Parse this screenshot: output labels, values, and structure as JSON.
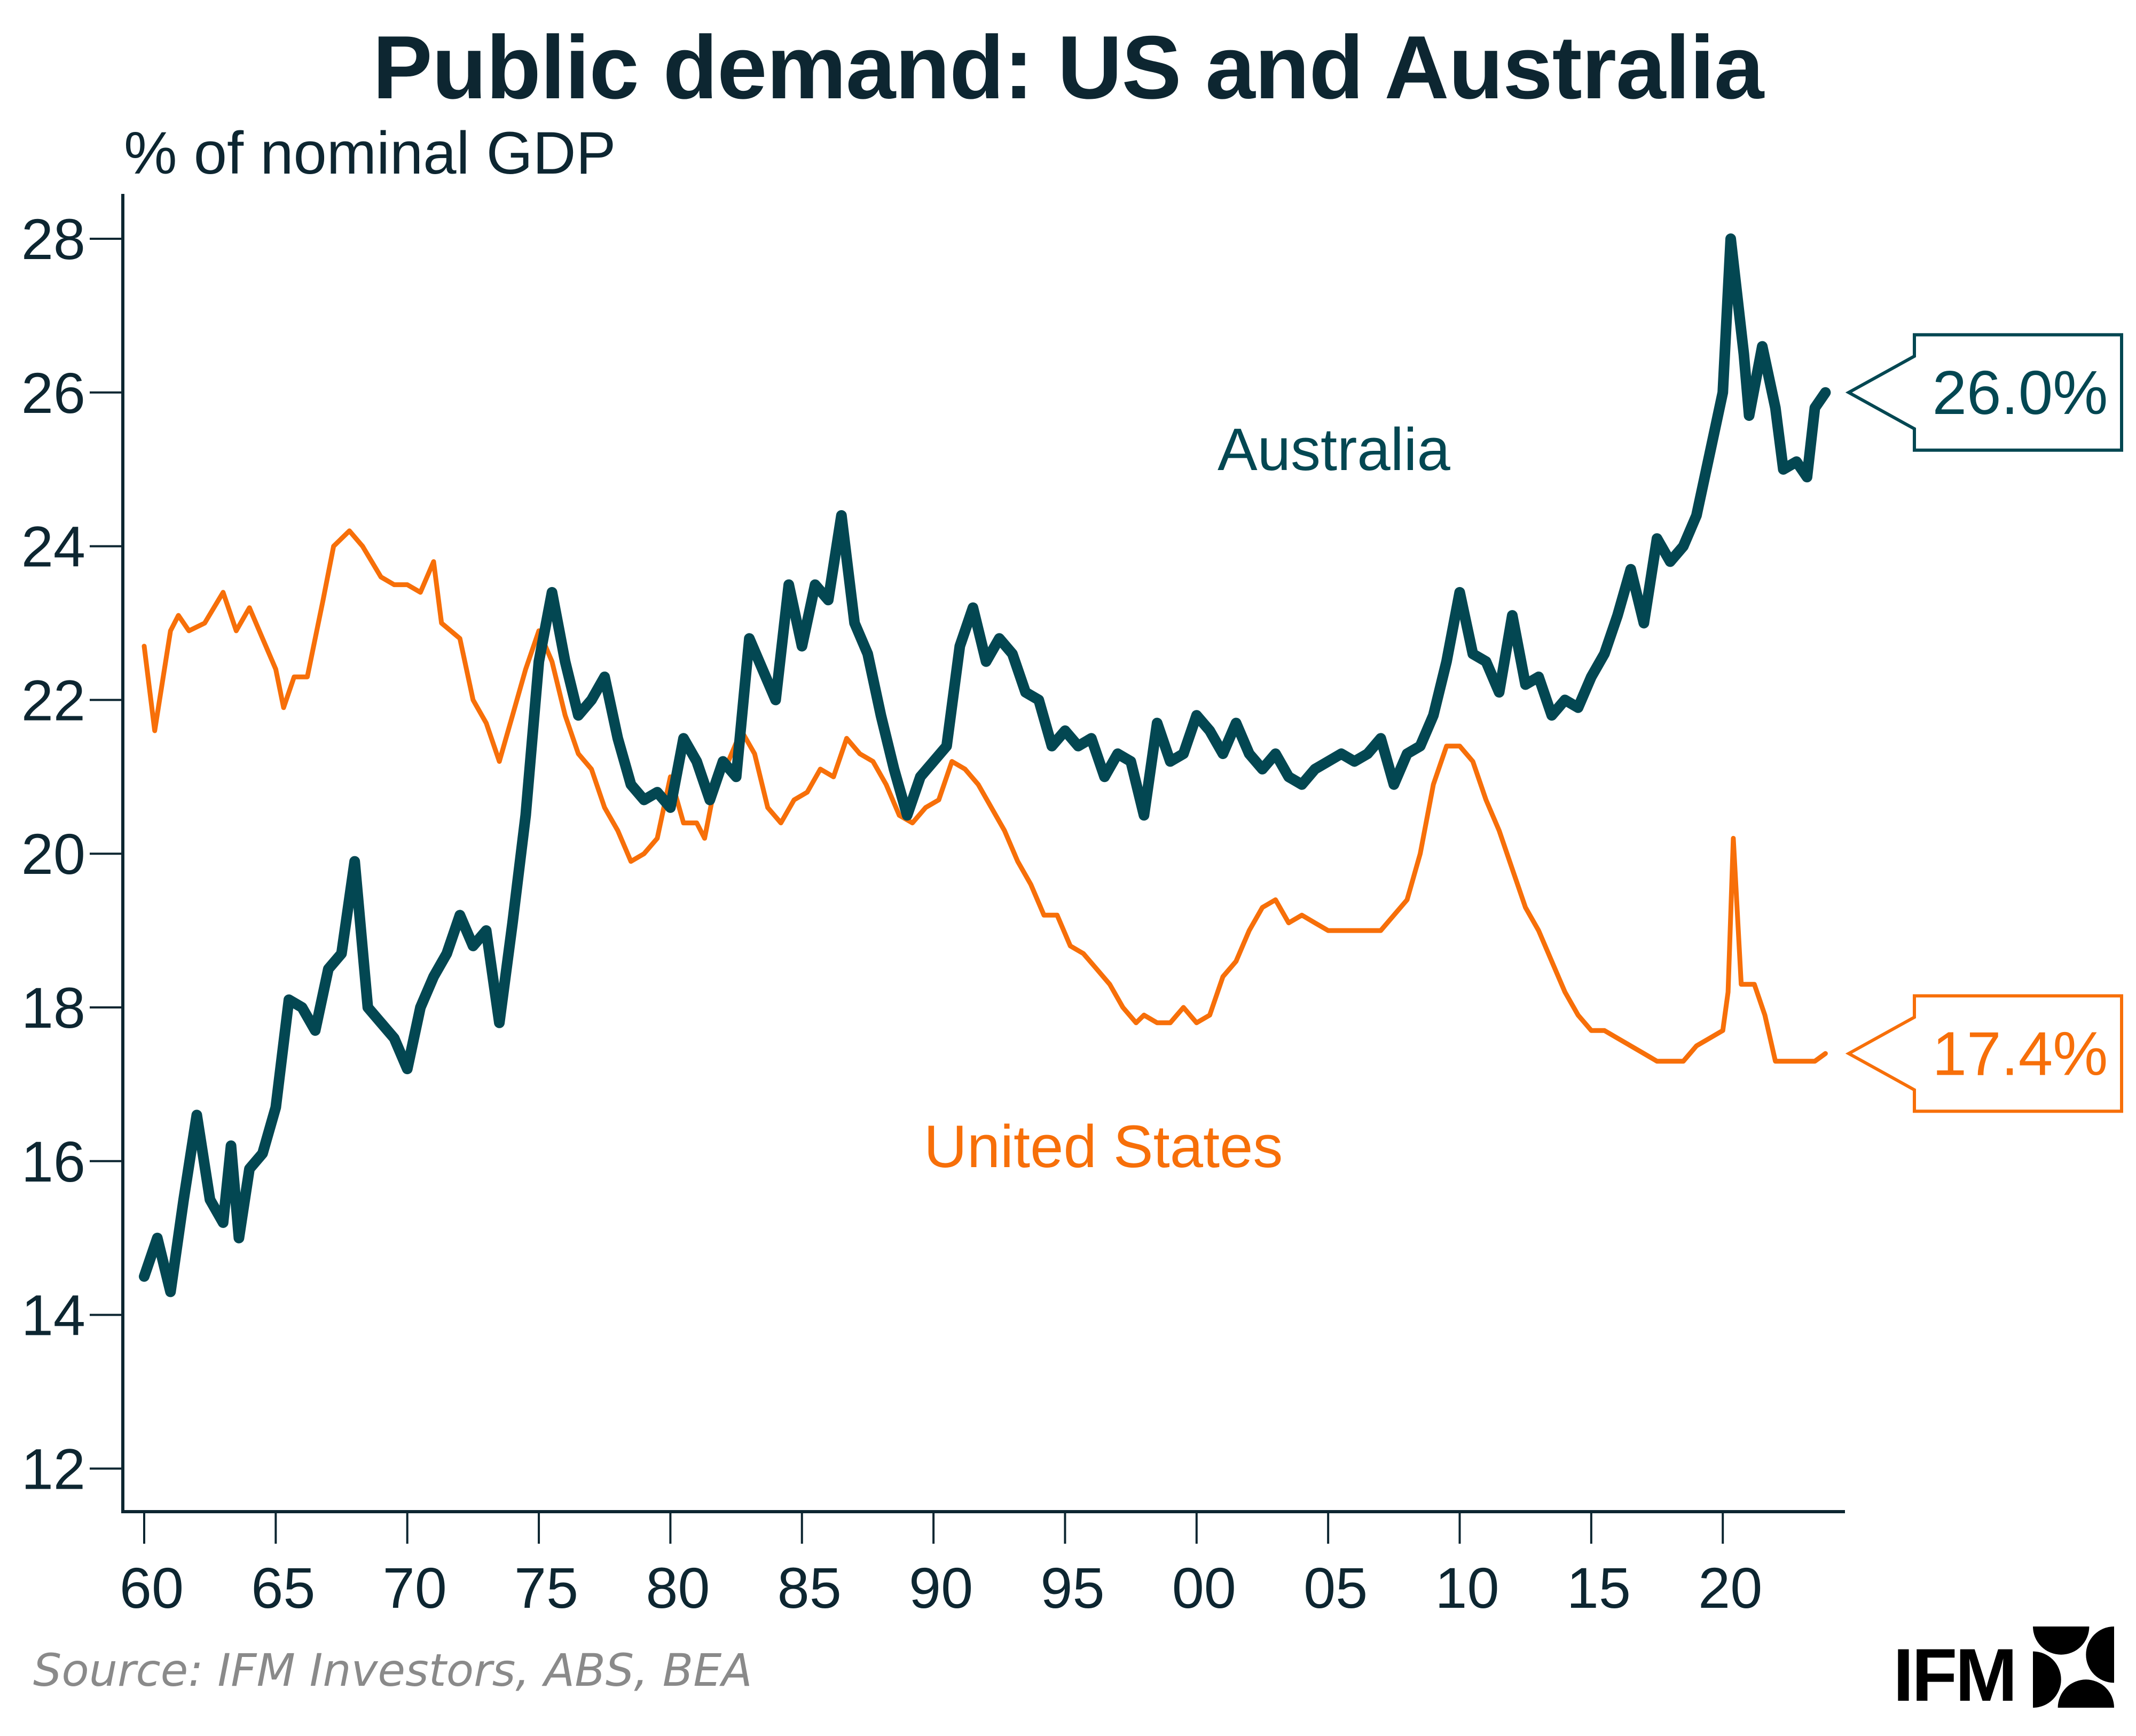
{
  "title": "Public demand: US and Australia",
  "source": "Source: IFM Investors, ABS, BEA",
  "logo": {
    "text": "IFM",
    "icon": "ifm-logo-mark-icon"
  },
  "colors": {
    "australia": "#034752",
    "us": "#f76f09",
    "axis": "#0d2631"
  },
  "chart_data": {
    "type": "line",
    "title": "Public demand: US and Australia",
    "xlabel": "",
    "ylabel": "% of nominal GDP",
    "xlim": [
      1959.4,
      2025.3
    ],
    "ylim": [
      11.5,
      28.5
    ],
    "yticks": [
      12,
      14,
      16,
      18,
      20,
      22,
      24,
      26,
      28
    ],
    "ytick_labels": [
      "12",
      "14",
      "16",
      "18",
      "20",
      "22",
      "24",
      "26",
      "28"
    ],
    "xticks": [
      1960,
      1965,
      1970,
      1975,
      1980,
      1985,
      1990,
      1995,
      2000,
      2005,
      2010,
      2015,
      2020
    ],
    "xtick_labels": [
      "60",
      "65",
      "70",
      "75",
      "80",
      "85",
      "90",
      "95",
      "00",
      "05",
      "10",
      "15",
      "20"
    ],
    "grid": false,
    "legend": "inline labels",
    "series": [
      {
        "name": "Australia",
        "label_text": "Australia",
        "end_label": "26.0%",
        "x": [
          1960,
          1960.5,
          1961,
          1961.5,
          1962,
          1962.5,
          1963,
          1963.3,
          1963.6,
          1964,
          1964.5,
          1965,
          1965.5,
          1966,
          1966.5,
          1967,
          1967.5,
          1968,
          1968.5,
          1969,
          1969.5,
          1970,
          1970.5,
          1971,
          1971.5,
          1972,
          1972.5,
          1973,
          1973.5,
          1974,
          1974.5,
          1975,
          1975.5,
          1976,
          1976.5,
          1977,
          1977.5,
          1978,
          1978.5,
          1979,
          1979.5,
          1980,
          1980.5,
          1981,
          1981.5,
          1982,
          1982.5,
          1983,
          1983.5,
          1984,
          1984.5,
          1985,
          1985.5,
          1986,
          1986.5,
          1987,
          1987.5,
          1988,
          1988.5,
          1989,
          1989.5,
          1990,
          1990.5,
          1991,
          1991.5,
          1992,
          1992.5,
          1993,
          1993.5,
          1994,
          1994.5,
          1995,
          1995.5,
          1996,
          1996.5,
          1997,
          1997.5,
          1998,
          1998.5,
          1999,
          1999.5,
          2000,
          2000.5,
          2001,
          2001.5,
          2002,
          2002.5,
          2003,
          2003.5,
          2004,
          2004.5,
          2005,
          2005.5,
          2006,
          2006.5,
          2007,
          2007.5,
          2008,
          2008.5,
          2009,
          2009.5,
          2010,
          2010.5,
          2011,
          2011.5,
          2012,
          2012.5,
          2013,
          2013.5,
          2014,
          2014.5,
          2015,
          2015.5,
          2016,
          2016.5,
          2017,
          2017.5,
          2018,
          2018.5,
          2019,
          2019.5,
          2020,
          2020.3,
          2020.8,
          2021,
          2021.5,
          2022,
          2022.3,
          2022.8,
          2023.2,
          2023.5,
          2023.9
        ],
        "values": [
          14.5,
          15.0,
          14.3,
          15.5,
          16.6,
          15.5,
          15.2,
          16.2,
          15.0,
          15.9,
          16.1,
          16.7,
          18.1,
          18.0,
          17.7,
          18.5,
          18.7,
          19.9,
          18.0,
          17.8,
          17.6,
          17.2,
          18.0,
          18.4,
          18.7,
          19.2,
          18.8,
          19.0,
          17.8,
          19.1,
          20.5,
          22.5,
          23.4,
          22.5,
          21.8,
          22.0,
          22.3,
          21.5,
          20.9,
          20.7,
          20.8,
          20.6,
          21.5,
          21.2,
          20.7,
          21.2,
          21.0,
          22.8,
          22.4,
          22.0,
          23.5,
          22.7,
          23.5,
          23.3,
          24.4,
          23.0,
          22.6,
          21.8,
          21.1,
          20.5,
          21.0,
          21.2,
          21.4,
          22.7,
          23.2,
          22.5,
          22.8,
          22.6,
          22.1,
          22.0,
          21.4,
          21.6,
          21.4,
          21.5,
          21.0,
          21.3,
          21.2,
          20.5,
          21.7,
          21.2,
          21.3,
          21.8,
          21.6,
          21.3,
          21.7,
          21.3,
          21.1,
          21.3,
          21.0,
          20.9,
          21.1,
          21.2,
          21.3,
          21.2,
          21.3,
          21.5,
          20.9,
          21.3,
          21.4,
          21.8,
          22.5,
          23.4,
          22.6,
          22.5,
          22.1,
          23.1,
          22.2,
          22.3,
          21.8,
          22.0,
          21.9,
          22.3,
          22.6,
          23.1,
          23.7,
          23.0,
          24.1,
          23.8,
          24.0,
          24.4,
          25.2,
          26.0,
          28.0,
          26.5,
          25.7,
          26.6,
          25.8,
          25.0,
          25.1,
          24.9,
          25.8,
          26.0
        ]
      },
      {
        "name": "United States",
        "label_text": "United States",
        "end_label": "17.4%",
        "x": [
          1960,
          1960.4,
          1961,
          1961.3,
          1961.7,
          1962.3,
          1963,
          1963.5,
          1964,
          1964.5,
          1965,
          1965.3,
          1965.7,
          1966.2,
          1966.8,
          1967.2,
          1967.8,
          1968.3,
          1969,
          1969.5,
          1970,
          1970.5,
          1971,
          1971.3,
          1972,
          1972.5,
          1973,
          1973.5,
          1974,
          1974.5,
          1975,
          1975.5,
          1976,
          1976.5,
          1977,
          1977.5,
          1978,
          1978.5,
          1979,
          1979.5,
          1980,
          1980.5,
          1981,
          1981.3,
          1981.7,
          1982.2,
          1982.7,
          1983.2,
          1983.7,
          1984.2,
          1984.7,
          1985.2,
          1985.7,
          1986.2,
          1986.7,
          1987.2,
          1987.7,
          1988.2,
          1988.7,
          1989.2,
          1989.7,
          1990.2,
          1990.7,
          1991.2,
          1991.7,
          1992.2,
          1992.7,
          1993.2,
          1993.7,
          1994.2,
          1994.7,
          1995.2,
          1995.7,
          1996.2,
          1996.7,
          1997.2,
          1997.7,
          1998,
          1998.5,
          1999,
          1999.5,
          2000,
          2000.5,
          2001,
          2001.5,
          2002,
          2002.5,
          2003,
          2003.5,
          2004,
          2004.5,
          2005,
          2005.5,
          2006,
          2006.5,
          2007,
          2007.5,
          2008,
          2008.5,
          2009,
          2009.5,
          2010,
          2010.5,
          2011,
          2011.5,
          2012,
          2012.5,
          2013,
          2013.5,
          2014,
          2014.5,
          2015,
          2015.5,
          2016,
          2016.5,
          2017,
          2017.5,
          2018,
          2018.5,
          2019,
          2019.5,
          2020,
          2020.2,
          2020.4,
          2020.7,
          2021.2,
          2021.6,
          2022,
          2022.5,
          2023,
          2023.5,
          2023.9
        ],
        "values": [
          22.7,
          21.6,
          22.9,
          23.1,
          22.9,
          23.0,
          23.4,
          22.9,
          23.2,
          22.8,
          22.4,
          21.9,
          22.3,
          22.3,
          23.3,
          24.0,
          24.2,
          24.0,
          23.6,
          23.5,
          23.5,
          23.4,
          23.8,
          23.0,
          22.8,
          22.0,
          21.7,
          21.2,
          21.8,
          22.4,
          22.9,
          22.5,
          21.8,
          21.3,
          21.1,
          20.6,
          20.3,
          19.9,
          20.0,
          20.2,
          21.0,
          20.4,
          20.4,
          20.2,
          20.9,
          21.2,
          21.6,
          21.3,
          20.6,
          20.4,
          20.7,
          20.8,
          21.1,
          21.0,
          21.5,
          21.3,
          21.2,
          20.9,
          20.5,
          20.4,
          20.6,
          20.7,
          21.2,
          21.1,
          20.9,
          20.6,
          20.3,
          19.9,
          19.6,
          19.2,
          19.2,
          18.8,
          18.7,
          18.5,
          18.3,
          18.0,
          17.8,
          17.9,
          17.8,
          17.8,
          18.0,
          17.8,
          17.9,
          18.4,
          18.6,
          19.0,
          19.3,
          19.4,
          19.1,
          19.2,
          19.1,
          19.0,
          19.0,
          19.0,
          19.0,
          19.0,
          19.2,
          19.4,
          20.0,
          20.9,
          21.4,
          21.4,
          21.2,
          20.7,
          20.3,
          19.8,
          19.3,
          19.0,
          18.6,
          18.2,
          17.9,
          17.7,
          17.7,
          17.6,
          17.5,
          17.4,
          17.3,
          17.3,
          17.3,
          17.5,
          17.6,
          17.7,
          18.2,
          20.2,
          18.3,
          18.3,
          17.9,
          17.3,
          17.3,
          17.3,
          17.3,
          17.4
        ]
      }
    ]
  }
}
